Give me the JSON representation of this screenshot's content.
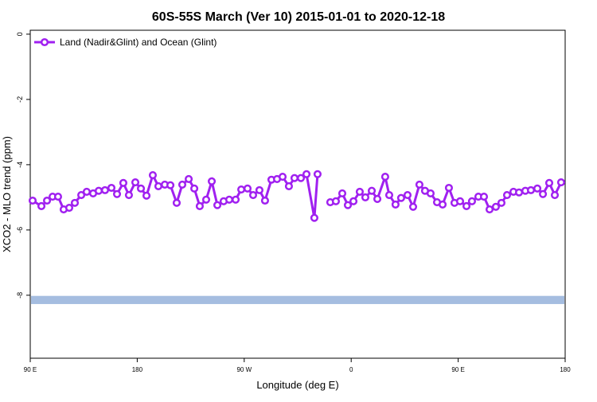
{
  "chart_data": {
    "type": "line",
    "title": "60S-55S March (Ver 10)   2015-01-01 to 2020-12-18",
    "x_label": "Longitude (deg E)",
    "y_label": "XCO2 - MLO trend (ppm)",
    "x": [
      92.0,
      99.4,
      104.1,
      108.8,
      113.4,
      118.1,
      122.8,
      127.5,
      132.9,
      137.5,
      142.9,
      147.6,
      152.9,
      158.3,
      163.0,
      168.3,
      173.0,
      178.4,
      183.1,
      187.8,
      193.1,
      197.8,
      203.2,
      207.9,
      213.2,
      217.9,
      223.3,
      228.0,
      232.6,
      238.0,
      242.7,
      247.4,
      252.7,
      257.4,
      262.8,
      267.5,
      272.8,
      277.5,
      282.8,
      287.5,
      292.9,
      297.6,
      302.3,
      307.6,
      312.3,
      317.7,
      322.4,
      329.0,
      331.7,
      337.0,
      342.4,
      347.1,
      352.5,
      357.2,
      361.9,
      367.2,
      371.9,
      377.3,
      382.0,
      388.6,
      392.0,
      397.3,
      402.0,
      407.4,
      412.1,
      417.4,
      422.1,
      426.8,
      432.2,
      436.9,
      442.2,
      446.9,
      451.6,
      457.0,
      461.6,
      467.0,
      471.7,
      476.4,
      481.7,
      486.4,
      491.1,
      496.5,
      501.2,
      506.5,
      511.2,
      516.6,
      521.3,
      526.6,
      531.3,
      536.6
    ],
    "series": [
      {
        "name": "Land (Nadir&Glint) and Ocean (Glint)",
        "color": "#a020f0",
        "values": [
          -5.1,
          -5.27,
          -5.1,
          -4.98,
          -4.98,
          -5.37,
          -5.32,
          -5.17,
          -4.93,
          -4.83,
          -4.88,
          -4.8,
          -4.78,
          -4.71,
          -4.9,
          -4.56,
          -4.93,
          -4.54,
          -4.73,
          -4.95,
          -4.32,
          -4.66,
          -4.61,
          -4.63,
          -5.17,
          -4.61,
          -4.44,
          -4.73,
          -5.27,
          -5.07,
          -4.51,
          -5.24,
          -5.12,
          -5.07,
          -5.07,
          -4.76,
          -4.73,
          -4.93,
          -4.78,
          -5.1,
          -4.46,
          -4.44,
          -4.37,
          -4.66,
          -4.41,
          -4.41,
          -4.29,
          -5.63,
          -4.29,
          null,
          -5.15,
          -5.12,
          -4.88,
          -5.24,
          -5.12,
          -4.83,
          -5.0,
          -4.8,
          -5.05,
          -4.37,
          -4.93,
          -5.22,
          -5.02,
          -4.93,
          -5.29,
          -4.61,
          -4.8,
          -4.88,
          -5.15,
          -5.22,
          -4.71,
          -5.17,
          -5.12,
          -5.27,
          -5.12,
          -4.98,
          -4.98,
          -5.37,
          -5.29,
          -5.17,
          -4.93,
          -4.83,
          -4.85,
          -4.8,
          -4.78,
          -4.73,
          -4.9,
          -4.56,
          -4.93,
          -4.54
        ]
      }
    ],
    "band": {
      "range": [
        -8.27,
        -8.02
      ],
      "color": "#a5bde0"
    },
    "xlim": [
      90,
      540
    ],
    "xticks": [
      {
        "value": 90,
        "label": "90 E"
      },
      {
        "value": 180,
        "label": "180"
      },
      {
        "value": 270,
        "label": "90 W"
      },
      {
        "value": 360,
        "label": "0"
      },
      {
        "value": 450,
        "label": "90 E"
      },
      {
        "value": 540,
        "label": "180"
      }
    ],
    "ylim": [
      -9.93,
      0.12
    ],
    "yticks": [
      0,
      -2,
      -4,
      -6,
      -8
    ],
    "legend": "top-left"
  }
}
